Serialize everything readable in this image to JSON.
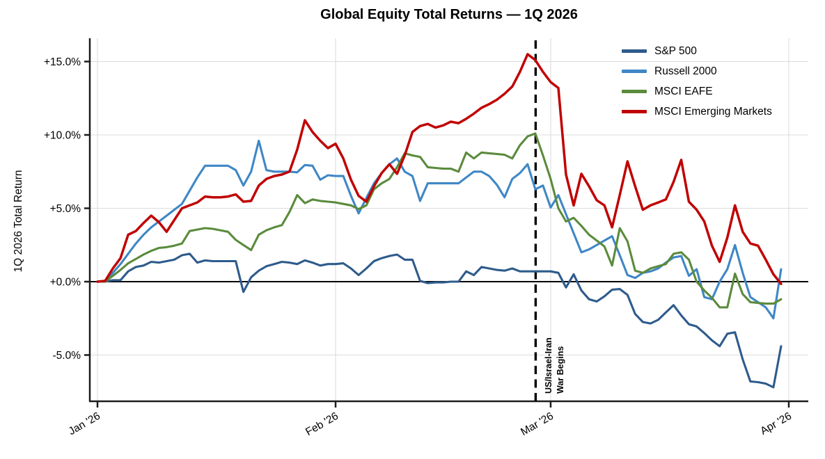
{
  "figure": {
    "title": "Global Equity Total Returns — 1Q 2026",
    "y_axis_label": "1Q 2026 Total Return",
    "annotation": {
      "lines": [
        "US/Israel-Iran",
        "War Begins"
      ],
      "event_day": 57
    }
  },
  "chart_data": {
    "type": "line",
    "title": "Global Equity Total Returns — 1Q 2026",
    "xlabel": "",
    "ylabel": "1Q 2026 Total Return",
    "x_unit": "calendar day offset from Jan 1 2026 (index 0 = Jan 1, 89 = Mar 31)",
    "x_tick_labels": [
      "Jan '26",
      "Feb '26",
      "Mar '26",
      "Apr '26"
    ],
    "x_tick_days": [
      0,
      31,
      59,
      90
    ],
    "y_tick_labels": [
      "+15.0%",
      "+10.0%",
      "+5.0%",
      "+0.0%",
      "-5.0%"
    ],
    "y_tick_values": [
      15,
      10,
      5,
      0,
      -5
    ],
    "ylim": [
      -8.2,
      16.6
    ],
    "xlim_days": [
      -1,
      92.5
    ],
    "grid": true,
    "zero_line": true,
    "legend_position": "upper right",
    "event_line": {
      "day": 57,
      "style": "dashed",
      "color": "#000000",
      "label": "US/Israel-Iran War Begins"
    },
    "series": [
      {
        "name": "S&P 500",
        "color": "#2e5b8c",
        "values": [
          0.0,
          0.0,
          0.1,
          0.1,
          0.7,
          1.0,
          1.1,
          1.35,
          1.3,
          1.4,
          1.5,
          1.8,
          1.9,
          1.3,
          1.45,
          1.4,
          1.4,
          1.4,
          1.4,
          -0.7,
          0.3,
          0.75,
          1.05,
          1.2,
          1.35,
          1.3,
          1.2,
          1.45,
          1.3,
          1.1,
          1.2,
          1.2,
          1.25,
          0.9,
          0.45,
          0.9,
          1.4,
          1.6,
          1.75,
          1.85,
          1.5,
          1.5,
          0.05,
          -0.1,
          -0.05,
          -0.05,
          0.0,
          0.0,
          0.7,
          0.45,
          1.0,
          0.9,
          0.8,
          0.75,
          0.9,
          0.7,
          0.7,
          0.7,
          0.7,
          0.7,
          0.6,
          -0.4,
          0.5,
          -0.6,
          -1.2,
          -1.35,
          -1.0,
          -0.55,
          -0.5,
          -0.9,
          -2.2,
          -2.75,
          -2.85,
          -2.6,
          -2.1,
          -1.6,
          -2.3,
          -2.9,
          -3.05,
          -3.5,
          -4.0,
          -4.4,
          -3.55,
          -3.45,
          -5.3,
          -6.8,
          -6.85,
          -6.95,
          -7.2,
          -4.4
        ]
      },
      {
        "name": "Russell 2000",
        "color": "#3f87c5",
        "values": [
          0.0,
          0.05,
          0.6,
          1.2,
          1.9,
          2.6,
          3.2,
          3.7,
          4.1,
          4.5,
          4.9,
          5.3,
          6.2,
          7.1,
          7.9,
          7.9,
          7.9,
          7.9,
          7.6,
          6.55,
          7.5,
          9.6,
          7.6,
          7.5,
          7.5,
          7.5,
          7.45,
          7.95,
          7.9,
          6.95,
          7.25,
          7.2,
          7.2,
          5.85,
          4.65,
          5.7,
          6.7,
          7.4,
          8.0,
          8.4,
          7.5,
          7.2,
          5.5,
          6.7,
          6.7,
          6.7,
          6.7,
          6.7,
          7.1,
          7.5,
          7.5,
          7.2,
          6.6,
          5.75,
          7.0,
          7.4,
          8.0,
          6.3,
          6.55,
          5.05,
          5.9,
          4.6,
          3.3,
          2.0,
          2.2,
          2.5,
          2.8,
          3.1,
          1.8,
          0.45,
          0.25,
          0.6,
          0.7,
          0.9,
          1.3,
          1.65,
          1.75,
          0.4,
          0.85,
          -1.05,
          -1.2,
          0.0,
          0.85,
          2.5,
          0.6,
          -1.05,
          -1.4,
          -1.75,
          -2.5,
          0.85
        ]
      },
      {
        "name": "MSCI EAFE",
        "color": "#5b8b3d",
        "values": [
          0.0,
          0.0,
          0.4,
          0.8,
          1.25,
          1.55,
          1.85,
          2.1,
          2.3,
          2.35,
          2.45,
          2.6,
          3.45,
          3.55,
          3.65,
          3.6,
          3.5,
          3.4,
          2.85,
          2.5,
          2.15,
          3.2,
          3.5,
          3.7,
          3.85,
          4.75,
          5.9,
          5.35,
          5.6,
          5.5,
          5.45,
          5.4,
          5.3,
          5.2,
          4.95,
          5.2,
          6.3,
          6.7,
          7.0,
          7.8,
          8.75,
          8.6,
          8.5,
          7.8,
          7.75,
          7.7,
          7.7,
          7.5,
          8.8,
          8.4,
          8.8,
          8.75,
          8.7,
          8.65,
          8.4,
          9.3,
          9.9,
          10.1,
          8.6,
          7.0,
          5.0,
          4.1,
          4.35,
          3.8,
          3.2,
          2.8,
          2.4,
          1.1,
          3.65,
          2.75,
          0.75,
          0.6,
          0.9,
          1.05,
          1.2,
          1.9,
          2.0,
          1.5,
          0.0,
          -0.6,
          -1.1,
          -1.75,
          -1.75,
          0.55,
          -0.85,
          -1.4,
          -1.45,
          -1.5,
          -1.5,
          -1.2
        ]
      },
      {
        "name": "MSCI Emerging Markets",
        "color": "#c00000",
        "values": [
          0.0,
          0.05,
          0.9,
          1.6,
          3.2,
          3.45,
          4.0,
          4.5,
          4.05,
          3.4,
          4.2,
          5.0,
          5.2,
          5.4,
          5.8,
          5.75,
          5.75,
          5.8,
          5.95,
          5.45,
          5.5,
          6.55,
          7.0,
          7.2,
          7.3,
          7.5,
          9.0,
          11.0,
          10.2,
          9.6,
          9.1,
          9.4,
          8.4,
          6.95,
          5.85,
          5.45,
          6.5,
          7.4,
          8.0,
          7.35,
          8.6,
          10.2,
          10.6,
          10.75,
          10.5,
          10.65,
          10.9,
          10.8,
          11.1,
          11.45,
          11.85,
          12.1,
          12.4,
          12.8,
          13.3,
          14.3,
          15.5,
          15.1,
          14.3,
          13.6,
          13.2,
          7.3,
          5.2,
          7.35,
          6.5,
          5.55,
          5.2,
          3.7,
          5.9,
          8.2,
          6.5,
          4.9,
          5.2,
          5.4,
          5.6,
          6.8,
          8.3,
          5.45,
          4.9,
          4.1,
          2.45,
          1.35,
          3.0,
          5.2,
          3.4,
          2.6,
          2.45,
          1.5,
          0.5,
          -0.15
        ]
      }
    ],
    "colors": {
      "grid": "#dcdcdc",
      "spine": "#1c1c1c",
      "zero_line": "#000000",
      "event_line": "#000000"
    }
  }
}
